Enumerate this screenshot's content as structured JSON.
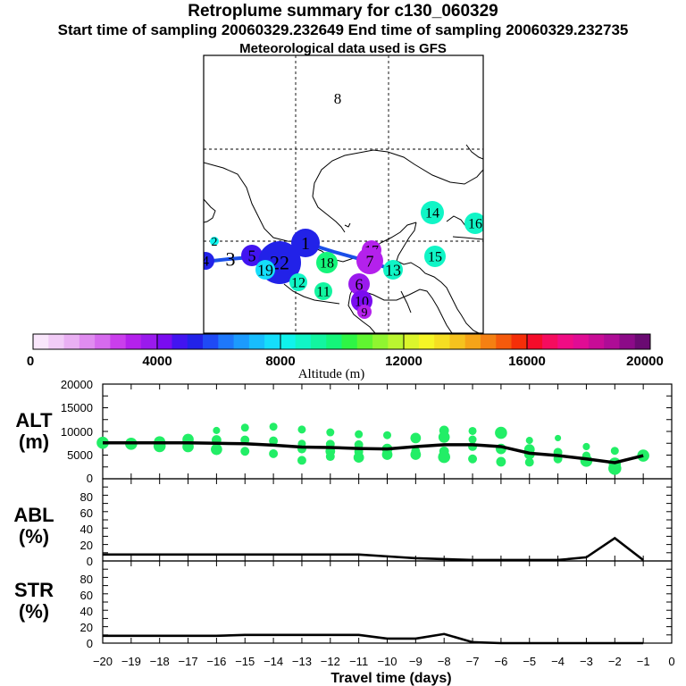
{
  "titles": {
    "main": "Retroplume summary for c130_060329",
    "sampling": "Start time of sampling 20060329.232649     End time of sampling 20060329.232735",
    "met": "Meteorological data used is GFS"
  },
  "colors": {
    "scale": [
      "#f9e6fb",
      "#f2ccf7",
      "#eab0f3",
      "#e08cf0",
      "#d66aee",
      "#ca3eec",
      "#b421ec",
      "#9a1aed",
      "#7a0cf0",
      "#4214f0",
      "#2222e8",
      "#1f4af5",
      "#1e78fb",
      "#1c9bfd",
      "#18bdfd",
      "#15defb",
      "#0ff3ec",
      "#10f5c6",
      "#12f5a0",
      "#14f57a",
      "#2ef545",
      "#60f530",
      "#90f530",
      "#baf530",
      "#dbf52c",
      "#f5f526",
      "#f5de22",
      "#f5c21e",
      "#f5a418",
      "#f58012",
      "#f55a0c",
      "#f52e08",
      "#f50c2a",
      "#f50c5e",
      "#f00c84",
      "#e00c94",
      "#c80c96",
      "#ae0c96",
      "#8c0a88",
      "#6a0a72"
    ],
    "scatter": "#22ee66",
    "track": "#1a4fe8"
  },
  "map": {
    "cluster_labels": [
      {
        "id": "8",
        "alt": null
      },
      {
        "id": "14",
        "alt": 8500
      },
      {
        "id": "16",
        "alt": 8500
      },
      {
        "id": "2",
        "alt": 8000
      },
      {
        "id": "3",
        "alt": null
      },
      {
        "id": "4",
        "alt": 5000
      },
      {
        "id": "5",
        "alt": 4600
      },
      {
        "id": "17",
        "alt": 3200
      },
      {
        "id": "1",
        "alt": 5200
      },
      {
        "id": "22",
        "alt": 5400
      },
      {
        "id": "19",
        "alt": 7800
      },
      {
        "id": "18",
        "alt": 9500
      },
      {
        "id": "12",
        "alt": 8500
      },
      {
        "id": "11",
        "alt": 9000
      },
      {
        "id": "7",
        "alt": 3200
      },
      {
        "id": "13",
        "alt": 8500
      },
      {
        "id": "15",
        "alt": 8500
      },
      {
        "id": "6",
        "alt": 3500
      },
      {
        "id": "10",
        "alt": 4000
      },
      {
        "id": "9",
        "alt": 3000
      }
    ]
  },
  "colorbar": {
    "ticks": [
      "0",
      "4000",
      "8000",
      "12000",
      "16000",
      "20000"
    ],
    "label": "Altitude (m)",
    "range": [
      0,
      20000
    ]
  },
  "chart_data": [
    {
      "type": "scatter",
      "panel": "ALT",
      "ylabel_line1": "ALT",
      "ylabel_line2": "(m)",
      "ylim": [
        0,
        20000
      ],
      "yticks": [
        "20000",
        "15000",
        "10000",
        "5000",
        "0"
      ],
      "xlim": [
        -20,
        0
      ],
      "line": {
        "x": [
          -20,
          -19,
          -18,
          -17,
          -16,
          -15,
          -14,
          -13,
          -12,
          -11,
          -10,
          -9,
          -8,
          -7,
          -6,
          -5,
          -4,
          -3,
          -2,
          -1
        ],
        "y": [
          7600,
          7600,
          7600,
          7600,
          7500,
          7400,
          7100,
          6700,
          6600,
          6400,
          6300,
          6800,
          7200,
          7200,
          6800,
          5400,
          4900,
          4200,
          3400,
          4900
        ]
      },
      "points": [
        {
          "x": -20,
          "y": 7600,
          "w": 1.0
        },
        {
          "x": -19,
          "y": 7400,
          "w": 1.0
        },
        {
          "x": -18,
          "y": 7800,
          "w": 0.9
        },
        {
          "x": -18,
          "y": 6900,
          "w": 1.0
        },
        {
          "x": -17,
          "y": 8300,
          "w": 0.9
        },
        {
          "x": -17,
          "y": 6800,
          "w": 0.9
        },
        {
          "x": -16,
          "y": 10200,
          "w": 0.4
        },
        {
          "x": -16,
          "y": 8200,
          "w": 0.7
        },
        {
          "x": -16,
          "y": 6200,
          "w": 0.9
        },
        {
          "x": -15,
          "y": 10800,
          "w": 0.5
        },
        {
          "x": -15,
          "y": 8200,
          "w": 0.6
        },
        {
          "x": -15,
          "y": 5800,
          "w": 0.6
        },
        {
          "x": -14,
          "y": 11000,
          "w": 0.5
        },
        {
          "x": -14,
          "y": 8000,
          "w": 0.6
        },
        {
          "x": -14,
          "y": 5300,
          "w": 0.6
        },
        {
          "x": -13,
          "y": 10400,
          "w": 0.5
        },
        {
          "x": -13,
          "y": 7400,
          "w": 0.5
        },
        {
          "x": -13,
          "y": 6300,
          "w": 0.6
        },
        {
          "x": -13,
          "y": 3900,
          "w": 0.6
        },
        {
          "x": -12,
          "y": 9800,
          "w": 0.5
        },
        {
          "x": -12,
          "y": 7300,
          "w": 0.6
        },
        {
          "x": -12,
          "y": 5800,
          "w": 0.7
        },
        {
          "x": -12,
          "y": 4700,
          "w": 0.6
        },
        {
          "x": -11,
          "y": 9400,
          "w": 0.5
        },
        {
          "x": -11,
          "y": 7200,
          "w": 0.6
        },
        {
          "x": -11,
          "y": 5700,
          "w": 0.6
        },
        {
          "x": -11,
          "y": 4500,
          "w": 0.8
        },
        {
          "x": -10,
          "y": 9200,
          "w": 0.5
        },
        {
          "x": -10,
          "y": 6300,
          "w": 0.8
        },
        {
          "x": -10,
          "y": 5100,
          "w": 0.8
        },
        {
          "x": -9,
          "y": 8600,
          "w": 0.8
        },
        {
          "x": -9,
          "y": 5800,
          "w": 0.6
        },
        {
          "x": -9,
          "y": 5100,
          "w": 0.8
        },
        {
          "x": -8,
          "y": 10200,
          "w": 0.7
        },
        {
          "x": -8,
          "y": 8800,
          "w": 0.9
        },
        {
          "x": -8,
          "y": 5800,
          "w": 0.7
        },
        {
          "x": -8,
          "y": 4600,
          "w": 1.0
        },
        {
          "x": -7,
          "y": 10100,
          "w": 0.5
        },
        {
          "x": -7,
          "y": 8300,
          "w": 0.5
        },
        {
          "x": -7,
          "y": 6800,
          "w": 0.6
        },
        {
          "x": -7,
          "y": 4200,
          "w": 0.6
        },
        {
          "x": -6,
          "y": 9700,
          "w": 1.0
        },
        {
          "x": -6,
          "y": 6300,
          "w": 0.8
        },
        {
          "x": -6,
          "y": 3600,
          "w": 0.7
        },
        {
          "x": -5,
          "y": 8100,
          "w": 0.4
        },
        {
          "x": -5,
          "y": 6200,
          "w": 0.8
        },
        {
          "x": -5,
          "y": 5200,
          "w": 0.8
        },
        {
          "x": -5,
          "y": 3500,
          "w": 0.6
        },
        {
          "x": -4,
          "y": 8600,
          "w": 0.3
        },
        {
          "x": -4,
          "y": 5600,
          "w": 0.6
        },
        {
          "x": -4,
          "y": 4200,
          "w": 0.6
        },
        {
          "x": -3,
          "y": 6800,
          "w": 0.4
        },
        {
          "x": -3,
          "y": 4900,
          "w": 0.5
        },
        {
          "x": -3,
          "y": 3800,
          "w": 1.0
        },
        {
          "x": -2,
          "y": 5900,
          "w": 0.5
        },
        {
          "x": -2,
          "y": 3200,
          "w": 1.0
        },
        {
          "x": -2,
          "y": 2200,
          "w": 1.1
        },
        {
          "x": -1,
          "y": 4900,
          "w": 1.0
        }
      ]
    },
    {
      "type": "line",
      "panel": "ABL",
      "ylabel_line1": "ABL",
      "ylabel_line2": "(%)",
      "ylim": [
        0,
        90
      ],
      "yticks": [
        "80",
        "60",
        "40",
        "20",
        "0"
      ],
      "xlim": [
        -20,
        0
      ],
      "x": [
        -20,
        -19,
        -18,
        -17,
        -16,
        -15,
        -14,
        -13,
        -12,
        -11,
        -10,
        -9,
        -8,
        -7,
        -6,
        -5,
        -4,
        -3,
        -2,
        -1
      ],
      "y": [
        7,
        7,
        7,
        7,
        7,
        7,
        7,
        7,
        7,
        7,
        5,
        3,
        2,
        1,
        1,
        1,
        1,
        4,
        25,
        1
      ]
    },
    {
      "type": "line",
      "panel": "STR",
      "ylabel_line1": "STR",
      "ylabel_line2": "(%)",
      "ylim": [
        0,
        90
      ],
      "yticks": [
        "80",
        "60",
        "40",
        "20",
        "0"
      ],
      "xlim": [
        -20,
        0
      ],
      "x": [
        -20,
        -19,
        -18,
        -17,
        -16,
        -15,
        -14,
        -13,
        -12,
        -11,
        -10,
        -9,
        -8,
        -7,
        -6,
        -5,
        -4,
        -3,
        -2,
        -1
      ],
      "y": [
        8,
        8,
        8,
        8,
        8,
        9,
        9,
        9,
        9,
        9,
        5,
        5,
        10,
        1,
        0,
        0,
        0,
        0,
        0,
        0
      ],
      "xticks": [
        "−20",
        "−19",
        "−18",
        "−17",
        "−16",
        "−15",
        "−14",
        "−13",
        "−12",
        "−11",
        "−10",
        "−9",
        "−8",
        "−7",
        "−6",
        "−5",
        "−4",
        "−3",
        "−2",
        "−1",
        "0"
      ],
      "xlabel": "Travel time (days)"
    }
  ]
}
